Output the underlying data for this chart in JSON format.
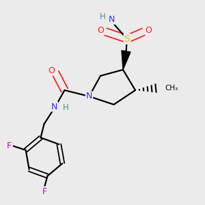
{
  "bg_color": "#ebebeb",
  "atom_colors": {
    "C": "#000000",
    "H": "#4a9090",
    "N": "#3030ff",
    "O": "#ff2020",
    "F": "#cc00cc",
    "S": "#cccc00"
  },
  "bond_color": "#000000",
  "bond_width": 1.6
}
